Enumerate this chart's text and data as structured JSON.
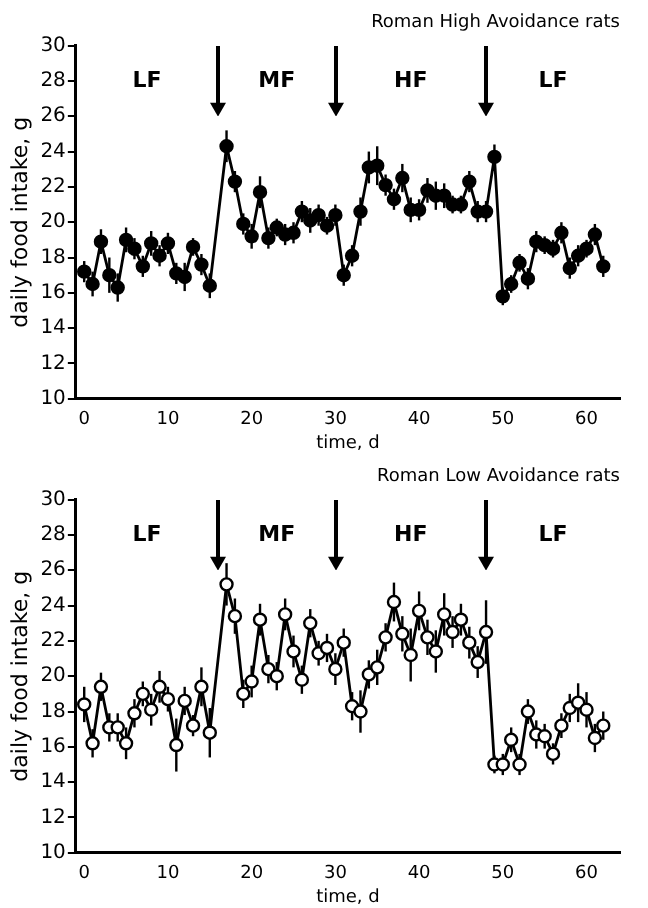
{
  "chart_data": [
    {
      "type": "line",
      "title": "Roman High Avoidance rats",
      "xlabel": "time, d",
      "ylabel": "daily food intake, g",
      "xlim": [
        -1,
        64
      ],
      "xticks": [
        0,
        10,
        20,
        30,
        40,
        50,
        60
      ],
      "ylim": [
        10,
        30
      ],
      "yticks": [
        10,
        12,
        14,
        16,
        18,
        20,
        22,
        24,
        26,
        28,
        30
      ],
      "grid": false,
      "legend": false,
      "marker": "circle",
      "line_style": "solid",
      "ref_lines": [
        {
          "axis": "x",
          "value": 16
        },
        {
          "axis": "x",
          "value": 30
        },
        {
          "axis": "x",
          "value": 48
        }
      ],
      "annotations": [
        "LF",
        "MF",
        "HF",
        "LF"
      ],
      "series": [
        {
          "color": "#000000",
          "x": [
            0,
            1,
            2,
            3,
            4,
            5,
            6,
            7,
            8,
            9,
            10,
            11,
            12,
            13,
            14,
            15,
            17,
            18,
            19,
            20,
            21,
            22,
            23,
            24,
            25,
            26,
            27,
            28,
            29,
            30,
            31,
            32,
            33,
            34,
            35,
            36,
            37,
            38,
            39,
            40,
            41,
            42,
            43,
            44,
            45,
            46,
            47,
            48,
            49,
            50,
            51,
            52,
            53,
            54,
            55,
            56,
            57,
            58,
            59,
            60,
            61,
            62
          ],
          "values": [
            17.2,
            16.5,
            18.9,
            17.0,
            16.3,
            19.0,
            18.5,
            17.5,
            18.8,
            18.1,
            18.8,
            17.1,
            16.9,
            18.6,
            17.6,
            16.4,
            24.3,
            22.3,
            19.9,
            19.2,
            21.7,
            19.1,
            19.7,
            19.3,
            19.4,
            20.6,
            20.1,
            20.4,
            19.8,
            20.4,
            17.0,
            18.1,
            20.6,
            23.1,
            23.2,
            22.1,
            21.3,
            22.5,
            20.7,
            20.7,
            21.8,
            21.5,
            21.5,
            21.0,
            21.0,
            22.3,
            20.6,
            20.6,
            23.7,
            15.8,
            16.5,
            17.7,
            16.8,
            18.9,
            18.7,
            18.5,
            19.4,
            17.4,
            18.1,
            18.5,
            19.3,
            17.5
          ],
          "errors": [
            0.6,
            0.7,
            0.7,
            1.0,
            0.8,
            0.7,
            0.6,
            0.6,
            0.7,
            0.6,
            0.6,
            0.6,
            0.8,
            0.5,
            0.6,
            0.7,
            0.9,
            0.6,
            0.6,
            0.7,
            0.9,
            0.6,
            0.5,
            0.6,
            0.6,
            0.6,
            0.7,
            0.6,
            0.5,
            0.6,
            0.6,
            0.6,
            0.8,
            0.9,
            1.1,
            0.6,
            0.6,
            0.8,
            0.7,
            0.6,
            0.7,
            0.8,
            0.7,
            0.5,
            0.5,
            0.6,
            0.6,
            0.6,
            0.7,
            0.5,
            0.5,
            0.5,
            0.6,
            0.6,
            0.5,
            0.5,
            0.6,
            0.6,
            0.6,
            0.5,
            0.6,
            0.6
          ]
        }
      ]
    },
    {
      "type": "line",
      "title": "Roman Low Avoidance rats",
      "xlabel": "time, d",
      "ylabel": "daily food intake, g",
      "xlim": [
        -1,
        64
      ],
      "xticks": [
        0,
        10,
        20,
        30,
        40,
        50,
        60
      ],
      "ylim": [
        10,
        30
      ],
      "yticks": [
        10,
        12,
        14,
        16,
        18,
        20,
        22,
        24,
        26,
        28,
        30
      ],
      "grid": false,
      "legend": false,
      "marker": "circle",
      "line_style": "solid",
      "ref_lines": [
        {
          "axis": "x",
          "value": 16
        },
        {
          "axis": "x",
          "value": 30
        },
        {
          "axis": "x",
          "value": 48
        }
      ],
      "annotations": [
        "LF",
        "MF",
        "HF",
        "LF"
      ],
      "series": [
        {
          "color": "#000000",
          "x": [
            0,
            1,
            2,
            3,
            4,
            5,
            6,
            7,
            8,
            9,
            10,
            11,
            12,
            13,
            14,
            15,
            17,
            18,
            19,
            20,
            21,
            22,
            23,
            24,
            25,
            26,
            27,
            28,
            29,
            30,
            31,
            32,
            33,
            34,
            35,
            36,
            37,
            38,
            39,
            40,
            41,
            42,
            43,
            44,
            45,
            46,
            47,
            48,
            49,
            50,
            51,
            52,
            53,
            54,
            55,
            56,
            57,
            58,
            59,
            60,
            61,
            62
          ],
          "values": [
            18.4,
            16.2,
            19.4,
            17.1,
            17.1,
            16.2,
            17.9,
            19.0,
            18.1,
            19.4,
            18.7,
            16.1,
            18.6,
            17.2,
            19.4,
            16.8,
            25.2,
            23.4,
            19.0,
            19.7,
            23.2,
            20.4,
            20.0,
            23.5,
            21.4,
            19.8,
            23.0,
            21.3,
            21.6,
            20.4,
            21.9,
            18.3,
            18.0,
            20.1,
            20.5,
            22.2,
            24.2,
            22.4,
            21.2,
            23.7,
            22.2,
            21.4,
            23.5,
            22.5,
            23.2,
            21.9,
            20.8,
            22.5,
            15.0,
            15.0,
            16.4,
            15.0,
            18.0,
            16.7,
            16.6,
            15.6,
            17.2,
            18.2,
            18.5,
            18.1,
            16.5,
            17.2
          ],
          "errors": [
            1.0,
            0.8,
            0.8,
            0.8,
            0.8,
            0.9,
            0.8,
            0.7,
            0.9,
            0.9,
            0.7,
            1.5,
            0.8,
            0.6,
            1.1,
            1.4,
            1.2,
            1.0,
            0.8,
            0.9,
            0.9,
            0.8,
            0.8,
            0.9,
            0.9,
            0.8,
            0.8,
            0.7,
            0.8,
            0.9,
            0.8,
            0.8,
            1.2,
            0.8,
            1.0,
            0.8,
            1.1,
            1.0,
            1.5,
            1.1,
            1.0,
            1.2,
            1.2,
            0.9,
            0.9,
            0.9,
            0.9,
            1.8,
            0.5,
            0.6,
            0.7,
            0.6,
            0.7,
            0.8,
            0.7,
            0.6,
            0.7,
            0.8,
            1.1,
            1.0,
            0.8,
            0.8
          ]
        }
      ]
    }
  ]
}
